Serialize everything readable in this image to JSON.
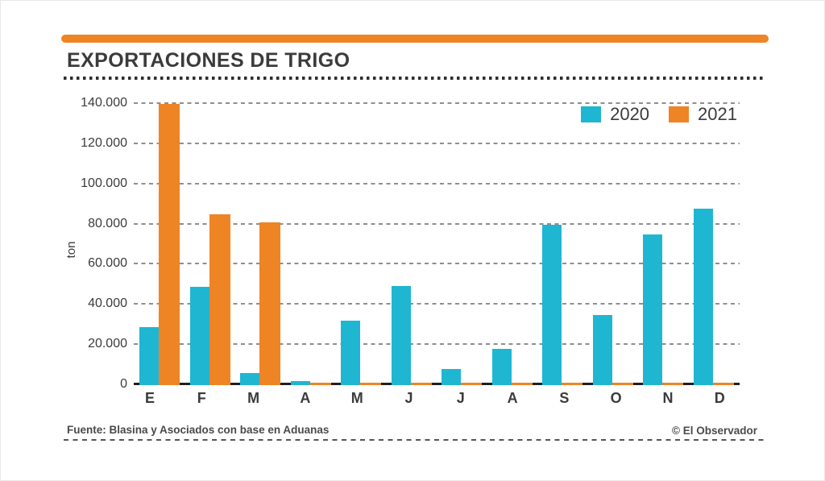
{
  "header": {
    "title": "EXPORTACIONES DE TRIGO"
  },
  "footer": {
    "source": "Fuente: Blasina y Asociados con base en Aduanas",
    "credit": "© El Observador"
  },
  "colors": {
    "accent_orange": "#EE8424",
    "series_2020": "#1FB6D2",
    "series_2021": "#EE8424",
    "text_dark": "#3B3B3B",
    "gridline_gray": "#8F8F8F",
    "axis_black": "#1F1F1F"
  },
  "chart_data": {
    "type": "bar",
    "title": "EXPORTACIONES DE TRIGO",
    "xlabel": "",
    "ylabel": "ton",
    "categories": [
      "E",
      "F",
      "M",
      "A",
      "M",
      "J",
      "J",
      "A",
      "S",
      "O",
      "N",
      "D"
    ],
    "series": [
      {
        "name": "2020",
        "color": "#1FB6D2",
        "values": [
          29000,
          49000,
          6000,
          2000,
          32000,
          49500,
          8000,
          18000,
          80000,
          35000,
          75000,
          88000
        ]
      },
      {
        "name": "2021",
        "color": "#EE8424",
        "values": [
          140000,
          85000,
          81000,
          1000,
          1000,
          1000,
          1000,
          1000,
          1000,
          1000,
          1000,
          1000
        ]
      }
    ],
    "ylim": [
      0,
      140000
    ],
    "yticks": [
      0,
      20000,
      40000,
      60000,
      80000,
      100000,
      120000,
      140000
    ],
    "ytick_labels": [
      "0",
      "20.000",
      "40.000",
      "60.000",
      "80.000",
      "100.000",
      "120.000",
      "140.000"
    ],
    "grid": "horizontal-dashed",
    "legend_position": "top-right"
  }
}
